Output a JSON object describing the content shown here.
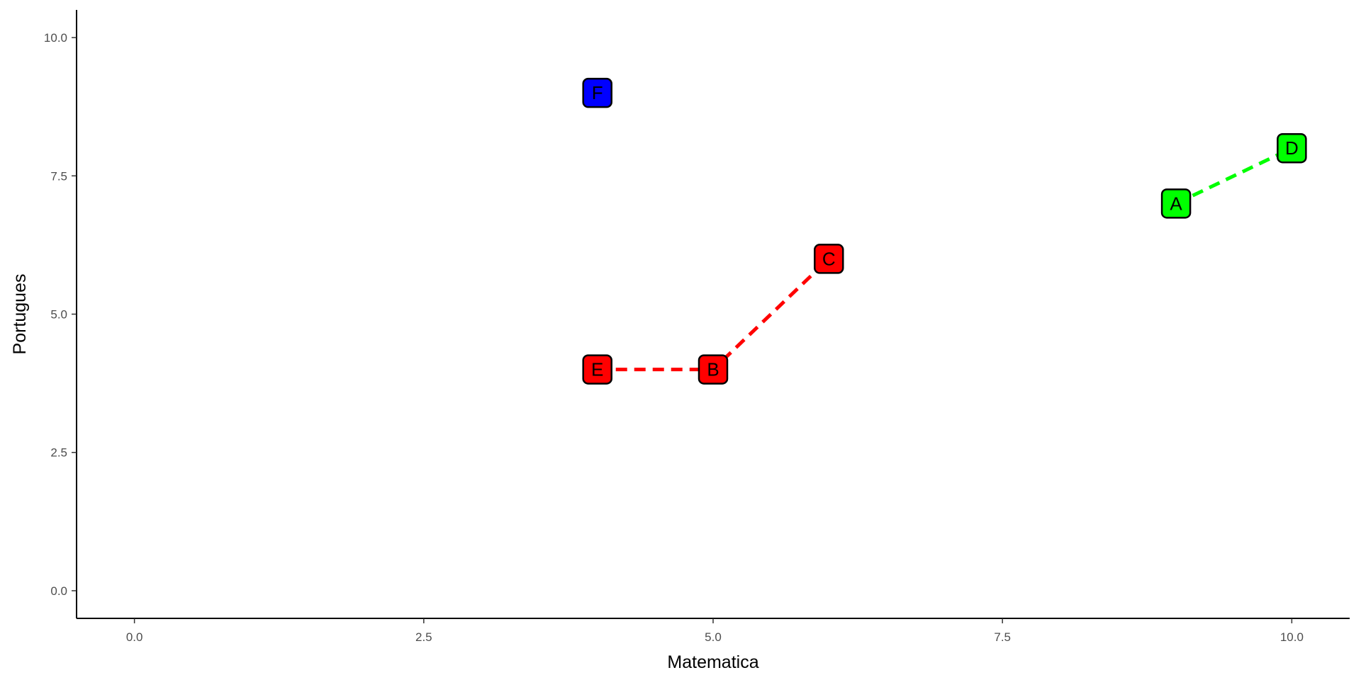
{
  "chart_data": {
    "type": "scatter",
    "title": "",
    "xlabel": "Matematica",
    "ylabel": "Portugues",
    "xlim": [
      -0.5,
      10.5
    ],
    "ylim": [
      -0.5,
      10.5
    ],
    "x_ticks": [
      "0.0",
      "2.5",
      "5.0",
      "7.5",
      "10.0"
    ],
    "x_tick_values": [
      0,
      2.5,
      5,
      7.5,
      10
    ],
    "y_ticks": [
      "0.0",
      "2.5",
      "5.0",
      "7.5",
      "10.0"
    ],
    "y_tick_values": [
      0,
      2.5,
      5,
      7.5,
      10
    ],
    "grid": false,
    "points": [
      {
        "label": "A",
        "x": 9,
        "y": 7,
        "color": "#00FF00"
      },
      {
        "label": "B",
        "x": 5,
        "y": 4,
        "color": "#FF0000"
      },
      {
        "label": "C",
        "x": 6,
        "y": 6,
        "color": "#FF0000"
      },
      {
        "label": "D",
        "x": 10,
        "y": 8,
        "color": "#00FF00"
      },
      {
        "label": "E",
        "x": 4,
        "y": 4,
        "color": "#FF0000"
      },
      {
        "label": "F",
        "x": 4,
        "y": 9,
        "color": "#0000FF"
      }
    ],
    "paths": [
      {
        "color": "#FF0000",
        "style": "dashed",
        "points": [
          [
            4,
            4
          ],
          [
            5,
            4
          ],
          [
            6,
            6
          ]
        ]
      },
      {
        "color": "#00FF00",
        "style": "dashed",
        "points": [
          [
            9,
            7
          ],
          [
            10,
            8
          ]
        ]
      }
    ]
  }
}
